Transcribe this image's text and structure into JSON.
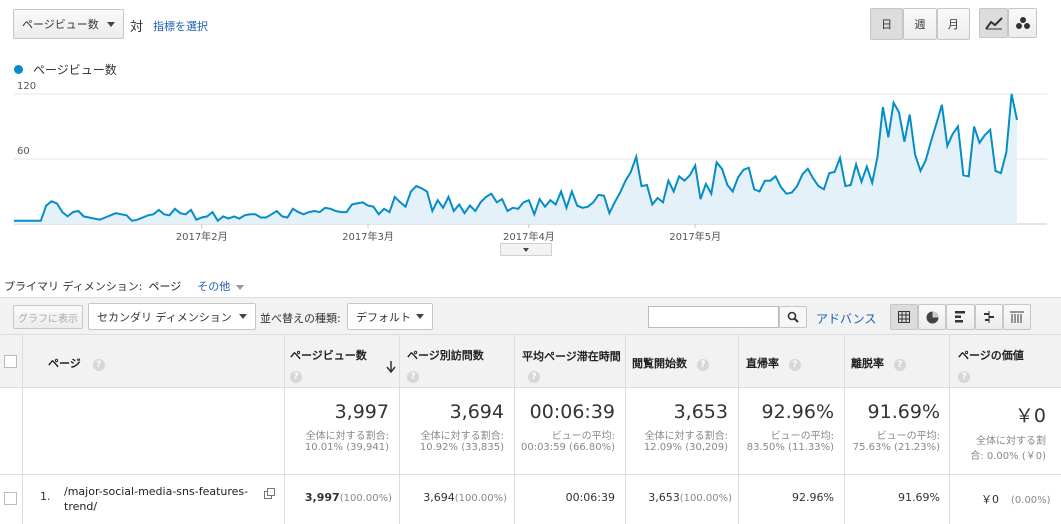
{
  "toolbar": {
    "metric_select": "ページビュー数",
    "vs_label": "対",
    "select_metric_link": "指標を選択",
    "period_buttons": [
      "日",
      "週",
      "月"
    ],
    "active_period": "日"
  },
  "legend": {
    "series_name": "ページビュー数",
    "color": "#058dc7"
  },
  "chart_data": {
    "type": "area",
    "series": [
      {
        "name": "ページビュー数",
        "values": [
          3,
          3,
          3,
          3,
          3,
          3,
          17,
          21,
          19,
          11,
          7,
          11,
          12,
          7,
          6,
          5,
          4,
          6,
          8,
          10,
          9,
          8,
          3,
          4,
          6,
          8,
          9,
          13,
          9,
          8,
          14,
          10,
          9,
          13,
          4,
          6,
          7,
          11,
          3,
          7,
          5,
          7,
          5,
          8,
          9,
          9,
          6,
          6,
          9,
          12,
          7,
          6,
          14,
          11,
          9,
          11,
          12,
          11,
          15,
          14,
          12,
          11,
          11,
          18,
          19,
          20,
          17,
          16,
          9,
          14,
          11,
          25,
          20,
          16,
          30,
          35,
          33,
          30,
          12,
          22,
          15,
          25,
          12,
          18,
          10,
          17,
          12,
          20,
          25,
          28,
          20,
          23,
          12,
          15,
          14,
          20,
          22,
          9,
          23,
          16,
          22,
          18,
          30,
          15,
          30,
          17,
          15,
          16,
          20,
          27,
          26,
          10,
          20,
          29,
          40,
          48,
          62,
          35,
          36,
          18,
          24,
          20,
          40,
          30,
          44,
          40,
          45,
          54,
          23,
          37,
          28,
          57,
          51,
          36,
          30,
          43,
          50,
          52,
          32,
          30,
          40,
          40,
          44,
          34,
          28,
          29,
          35,
          46,
          51,
          42,
          35,
          32,
          47,
          48,
          61,
          35,
          36,
          55,
          39,
          53,
          38,
          62,
          108,
          80,
          112,
          103,
          76,
          101,
          64,
          49,
          59,
          77,
          93,
          110,
          72,
          83,
          90,
          45,
          44,
          90,
          75,
          82,
          87,
          49,
          47,
          66,
          120,
          96
        ]
      }
    ],
    "x_tick_labels": [
      "2017年2月",
      "2017年3月",
      "2017年4月",
      "2017年5月"
    ],
    "y_tick_labels": [
      "60",
      "120"
    ],
    "ylim": [
      0,
      120
    ],
    "grid": true
  },
  "dimension": {
    "label": "プライマリ ディメンション:",
    "value": "ページ",
    "other": "その他"
  },
  "controls": {
    "graph_button": "グラフに表示",
    "secondary_dimension": "セカンダリ ディメンション",
    "sort_label": "並べ替えの種類:",
    "sort_value": "デフォルト",
    "search_value": "",
    "advanced": "アドバンス"
  },
  "table": {
    "headers": [
      "ページ",
      "ページビュー数",
      "ページ別訪問数",
      "平均ページ滞在時間",
      "閲覧開始数",
      "直帰率",
      "離脱率",
      "ページの価値"
    ],
    "totals": [
      {
        "value": "3,997",
        "sub1": "全体に対する割合:",
        "sub2": "10.01% (39,941)"
      },
      {
        "value": "3,694",
        "sub1": "全体に対する割合:",
        "sub2": "10.92% (33,835)"
      },
      {
        "value": "00:06:39",
        "sub1": "ビューの平均:",
        "sub2": "00:03:59 (66.80%)"
      },
      {
        "value": "3,653",
        "sub1": "全体に対する割合:",
        "sub2": "12.09% (30,209)"
      },
      {
        "value": "92.96%",
        "sub1": "ビューの平均:",
        "sub2": "83.50% (11.33%)"
      },
      {
        "value": "91.69%",
        "sub1": "ビューの平均:",
        "sub2": "75.63% (21.23%)"
      },
      {
        "value": "￥0",
        "sub1": "全体に対する割",
        "sub2": "合: 0.00% (￥0)"
      }
    ],
    "rows": [
      {
        "index": "1.",
        "page_line1": "/major-social-media-sns-features-",
        "page_line2": "trend/",
        "pv": "3,997",
        "pv_pct": "(100.00%)",
        "visits": "3,694",
        "visits_pct": "(100.00%)",
        "avg_time": "00:06:39",
        "entrances": "3,653",
        "entrances_pct": "(100.00%)",
        "bounce": "92.96%",
        "exit": "91.69%",
        "value": "￥0",
        "value_pct": "(0.00%)"
      }
    ]
  }
}
